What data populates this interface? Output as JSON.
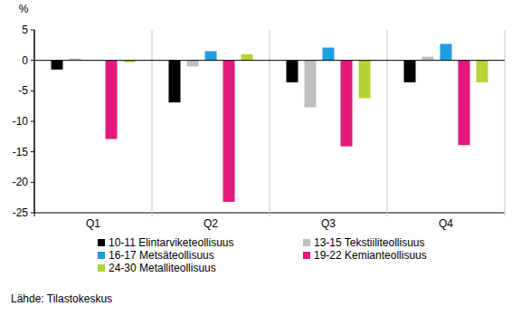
{
  "chart_data": {
    "type": "bar",
    "y_label": "%",
    "source": "Lähde: Tilastokeskus",
    "categories": [
      "Q1",
      "Q2",
      "Q3",
      "Q4"
    ],
    "series": [
      {
        "name": "10-11 Elintarviketeollisuus",
        "color": "#000000",
        "values": [
          -1.5,
          -6.9,
          -3.6,
          -3.6
        ]
      },
      {
        "name": "13-15 Tekstiiliteollisuus",
        "color": "#bfbfbf",
        "values": [
          0.3,
          -1.0,
          -7.7,
          0.6
        ]
      },
      {
        "name": "16-17 Metsäteollisuus",
        "color": "#1f9ddf",
        "values": [
          0,
          1.5,
          2.1,
          2.7
        ]
      },
      {
        "name": "19-22 Kemianteollisuus",
        "color": "#e2187b",
        "values": [
          -12.9,
          -23.2,
          -14.1,
          -13.9
        ]
      },
      {
        "name": "24-30 Metalliteollisuus",
        "color": "#b6d335",
        "values": [
          -0.3,
          1.0,
          -6.2,
          -3.6
        ]
      }
    ],
    "ylim": [
      -25,
      5
    ],
    "yticks": [
      -25,
      -20,
      -15,
      -10,
      -5,
      0,
      5
    ],
    "grid": false,
    "legend": "bottom"
  }
}
